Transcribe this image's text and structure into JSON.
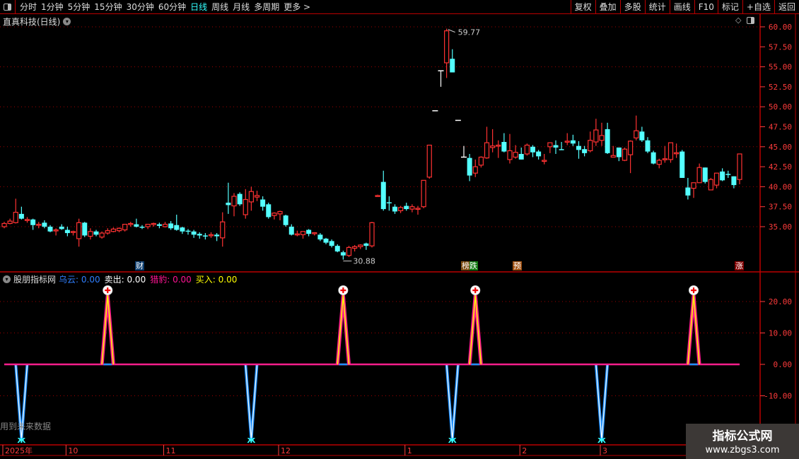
{
  "menubar": {
    "periods": [
      "分时",
      "1分钟",
      "5分钟",
      "15分钟",
      "30分钟",
      "60分钟",
      "日线",
      "周线",
      "月线",
      "多周期",
      "更多 >"
    ],
    "active_period": "日线",
    "buttons": [
      "复权",
      "叠加",
      "多股",
      "统计",
      "画线",
      "F10",
      "标记",
      "+自选",
      "返回"
    ]
  },
  "title": {
    "stock": "直真科技(日线)"
  },
  "colors": {
    "up": "#ff3232",
    "down": "#54ffff",
    "flat": "#ffffff",
    "grid": "#a00000",
    "axis": "#ff3b3b",
    "zero_line": "#ff1e8c",
    "pulse_up_inner": "#ffff00",
    "pulse_down_outer": "#1e90ff",
    "pulse_down_inner": "#ffffff"
  },
  "annotations": {
    "high_label": "59.77",
    "low_label": "30.88",
    "tags": [
      "财",
      "榜跌",
      "预",
      "涨"
    ]
  },
  "indicator": {
    "name": "股朋指标网",
    "legend": [
      {
        "label": "乌云:",
        "value": "0.00",
        "color": "#2f7fff"
      },
      {
        "label": "卖出:",
        "value": "0.00",
        "color": "#ffffff"
      },
      {
        "label": "猎豹:",
        "value": "0.00",
        "color": "#ff1493"
      },
      {
        "label": "买入:",
        "value": "0.00",
        "color": "#ffff00"
      }
    ],
    "note": "用到未来数据"
  },
  "watermark": {
    "line1": "指标公式网",
    "line2": "www.zbgs3.com"
  },
  "chart_data": [
    {
      "type": "candlestick",
      "ylim": [
        32.5,
        61
      ],
      "yticks": [
        60,
        57.5,
        55,
        52.5,
        50,
        47.5,
        45,
        42.5,
        40,
        37.5,
        35
      ],
      "ytick_labels": [
        "60.00",
        "57.50",
        "55.00",
        "52.50",
        "50.00",
        "47.50",
        "45.00",
        "42.50",
        "40.00",
        "37.50",
        "35.00"
      ],
      "grid_y": [
        60,
        55,
        50,
        45,
        40,
        35
      ],
      "ohlc": [
        [
          35.0,
          35.6,
          34.8,
          35.4
        ],
        [
          35.4,
          36.0,
          35.3,
          35.7
        ],
        [
          35.5,
          38.5,
          35.4,
          36.8
        ],
        [
          36.6,
          37.5,
          35.9,
          36.0
        ],
        [
          35.8,
          36.2,
          35.5,
          35.9
        ],
        [
          35.9,
          36.0,
          34.6,
          35.2
        ],
        [
          35.2,
          35.6,
          34.8,
          35.3
        ],
        [
          35.5,
          35.8,
          34.8,
          35.0
        ],
        [
          35.0,
          35.2,
          34.3,
          34.4
        ],
        [
          34.5,
          34.8,
          33.9,
          34.6
        ],
        [
          35.0,
          35.3,
          34.6,
          34.7
        ],
        [
          34.6,
          35.0,
          33.8,
          34.2
        ],
        [
          34.3,
          34.5,
          33.9,
          34.4
        ],
        [
          33.5,
          36.0,
          32.5,
          35.5
        ],
        [
          35.5,
          35.6,
          33.7,
          33.9
        ],
        [
          33.8,
          34.8,
          33.4,
          34.4
        ],
        [
          34.4,
          34.6,
          33.8,
          34.0
        ],
        [
          33.7,
          34.4,
          33.5,
          34.2
        ],
        [
          34.2,
          34.8,
          34.0,
          34.5
        ],
        [
          34.4,
          34.9,
          34.3,
          34.7
        ],
        [
          34.5,
          34.9,
          34.3,
          34.8
        ],
        [
          34.6,
          35.2,
          34.4,
          35.3
        ],
        [
          35.3,
          35.6,
          35.0,
          35.4
        ],
        [
          35.3,
          36.0,
          34.9,
          35.0
        ],
        [
          35.0,
          35.2,
          34.7,
          34.9
        ],
        [
          35.0,
          35.3,
          34.7,
          35.3
        ],
        [
          35.3,
          35.5,
          35.0,
          35.4
        ],
        [
          35.3,
          35.5,
          34.8,
          35.1
        ],
        [
          35.0,
          35.6,
          34.9,
          35.3
        ],
        [
          35.4,
          35.7,
          34.6,
          34.8
        ],
        [
          35.2,
          36.5,
          34.5,
          34.6
        ],
        [
          34.9,
          35.0,
          34.1,
          34.4
        ],
        [
          34.5,
          34.7,
          34.0,
          34.4
        ],
        [
          34.4,
          34.6,
          33.6,
          34.0
        ],
        [
          34.1,
          34.3,
          33.5,
          33.9
        ],
        [
          33.9,
          34.2,
          33.4,
          33.8
        ],
        [
          33.9,
          34.3,
          33.6,
          34.0
        ],
        [
          34.0,
          34.2,
          33.2,
          33.8
        ],
        [
          33.6,
          36.8,
          32.5,
          35.6
        ],
        [
          38.0,
          40.5,
          36.6,
          37.7
        ],
        [
          37.6,
          39.2,
          36.3,
          38.8
        ],
        [
          39.1,
          39.3,
          37.6,
          37.8
        ],
        [
          36.5,
          39.7,
          36.0,
          38.4
        ],
        [
          38.1,
          40.0,
          37.0,
          39.4
        ],
        [
          38.7,
          39.5,
          38.2,
          38.9
        ],
        [
          38.4,
          38.8,
          37.0,
          37.5
        ],
        [
          37.8,
          38.0,
          36.0,
          36.2
        ],
        [
          36.4,
          36.8,
          35.9,
          36.7
        ],
        [
          36.6,
          37.0,
          35.8,
          36.9
        ],
        [
          36.4,
          36.5,
          35.0,
          35.2
        ],
        [
          35.0,
          35.3,
          33.9,
          34.0
        ],
        [
          34.0,
          34.5,
          33.8,
          34.1
        ],
        [
          34.0,
          34.2,
          33.5,
          34.4
        ],
        [
          34.6,
          34.7,
          33.8,
          34.1
        ],
        [
          34.2,
          34.3,
          33.9,
          34.25
        ],
        [
          34.0,
          34.2,
          33.2,
          33.4
        ],
        [
          33.5,
          33.6,
          32.8,
          33.0
        ],
        [
          33.2,
          33.4,
          32.4,
          32.6
        ],
        [
          32.6,
          32.8,
          31.8,
          31.9
        ],
        [
          31.8,
          32.0,
          30.88,
          31.4
        ],
        [
          31.4,
          32.6,
          31.2,
          32.4
        ],
        [
          32.3,
          32.7,
          31.9,
          32.5
        ],
        [
          32.5,
          32.8,
          32.2,
          32.7
        ],
        [
          32.9,
          33.0,
          32.1,
          32.6
        ],
        [
          32.6,
          35.6,
          32.4,
          35.5
        ],
        [
          38.85,
          39.0,
          38.8,
          38.9
        ],
        [
          40.6,
          42.0,
          37.0,
          37.2
        ],
        [
          38.05,
          38.8,
          37.0,
          38.0
        ],
        [
          37.5,
          37.8,
          36.6,
          36.9
        ],
        [
          37.0,
          37.6,
          36.7,
          37.4
        ],
        [
          37.6,
          38.0,
          37.0,
          37.2
        ],
        [
          37.2,
          37.8,
          36.8,
          37.5
        ],
        [
          37.2,
          37.6,
          36.5,
          37.3
        ],
        [
          37.5,
          40.8,
          37.3,
          40.8
        ],
        [
          41.2,
          45.2,
          41.0,
          45.2
        ],
        [
          49.5,
          49.5,
          49.5,
          49.5
        ],
        [
          54.5,
          54.5,
          52.5,
          54.5
        ],
        [
          55.5,
          59.77,
          53.6,
          59.5
        ],
        [
          56.0,
          57.2,
          54.3,
          54.3
        ],
        [
          48.3,
          48.3,
          48.3,
          48.3
        ],
        [
          43.7,
          45.1,
          43.7,
          43.7
        ],
        [
          43.6,
          44.1,
          40.7,
          41.4
        ],
        [
          41.7,
          43.4,
          41.2,
          42.5
        ],
        [
          42.7,
          43.8,
          42.4,
          43.7
        ],
        [
          43.6,
          47.5,
          43.5,
          45.5
        ],
        [
          44.9,
          47.2,
          44.3,
          45.1
        ],
        [
          45.1,
          45.8,
          43.6,
          45.2
        ],
        [
          45.6,
          46.7,
          44.3,
          44.4
        ],
        [
          43.4,
          46.6,
          42.9,
          44.5
        ],
        [
          43.7,
          45.2,
          43.5,
          44.3
        ],
        [
          44.1,
          44.9,
          43.4,
          43.4
        ],
        [
          44.1,
          45.4,
          43.9,
          45.2
        ],
        [
          45.0,
          45.2,
          43.7,
          44.3
        ],
        [
          44.4,
          44.6,
          43.4,
          43.8
        ],
        [
          43.2,
          44.1,
          42.8,
          43.3
        ],
        [
          45.0,
          45.5,
          44.2,
          45.5
        ],
        [
          45.2,
          45.8,
          44.1,
          44.9
        ],
        [
          44.7,
          45.6,
          44.6,
          44.6
        ],
        [
          45.6,
          46.7,
          45.2,
          45.7
        ],
        [
          45.8,
          46.5,
          45.1,
          45.4
        ],
        [
          45.1,
          45.7,
          43.5,
          44.6
        ],
        [
          44.7,
          45.1,
          43.8,
          44.2
        ],
        [
          44.5,
          46.9,
          44.3,
          45.8
        ],
        [
          45.6,
          48.5,
          45.1,
          47.1
        ],
        [
          45.8,
          48.0,
          45.1,
          46.4
        ],
        [
          47.2,
          48.0,
          44.1,
          44.2
        ],
        [
          43.7,
          45.1,
          43.7,
          43.9
        ],
        [
          44.9,
          44.9,
          43.2,
          43.7
        ],
        [
          43.3,
          44.9,
          43.2,
          44.7
        ],
        [
          44.0,
          45.8,
          41.7,
          45.7
        ],
        [
          46.1,
          48.9,
          45.8,
          47.0
        ],
        [
          46.9,
          47.5,
          45.6,
          45.8
        ],
        [
          45.8,
          46.2,
          44.2,
          44.4
        ],
        [
          44.3,
          44.5,
          42.8,
          42.9
        ],
        [
          42.8,
          43.5,
          42.3,
          43.3
        ],
        [
          43.4,
          45.1,
          43.0,
          43.5
        ],
        [
          43.4,
          45.5,
          43.0,
          45.5
        ],
        [
          44.2,
          45.4,
          43.6,
          44.25
        ],
        [
          44.4,
          44.6,
          41.1,
          41.1
        ],
        [
          39.9,
          41.1,
          38.4,
          38.9
        ],
        [
          39.8,
          40.5,
          38.6,
          40.5
        ],
        [
          40.5,
          42.9,
          40.5,
          42.4
        ],
        [
          42.4,
          42.4,
          40.4,
          40.6
        ],
        [
          39.6,
          41.1,
          39.6,
          40.9
        ],
        [
          40.2,
          41.7,
          39.8,
          41.7
        ],
        [
          41.9,
          42.3,
          40.7,
          40.8
        ],
        [
          41.6,
          42.0,
          41.1,
          41.5
        ],
        [
          41.3,
          41.3,
          39.8,
          40.2
        ],
        [
          40.9,
          44.1,
          40.3,
          44.1
        ]
      ],
      "x_labels": [
        {
          "label": "2025年",
          "index": 0
        },
        {
          "label": "10",
          "index": 11
        },
        {
          "label": "11",
          "index": 28
        },
        {
          "label": "12",
          "index": 48
        },
        {
          "label": "1",
          "index": 70
        },
        {
          "label": "2",
          "index": 90
        },
        {
          "label": "3",
          "index": 104
        }
      ]
    },
    {
      "type": "line",
      "ylim": [
        -25,
        28
      ],
      "yticks": [
        20,
        10,
        0,
        -10
      ],
      "ytick_labels": [
        "20.00",
        "10.00",
        "0.00",
        "-10.00"
      ],
      "buy_signals": [
        {
          "index": 18,
          "value": 22
        },
        {
          "index": 59,
          "value": 22
        },
        {
          "index": 82,
          "value": 22
        },
        {
          "index": 120,
          "value": 22
        }
      ],
      "sell_signals": [
        {
          "index": 3,
          "value": -24
        },
        {
          "index": 43,
          "value": -24
        },
        {
          "index": 78,
          "value": -24
        },
        {
          "index": 104,
          "value": -24
        }
      ]
    }
  ]
}
